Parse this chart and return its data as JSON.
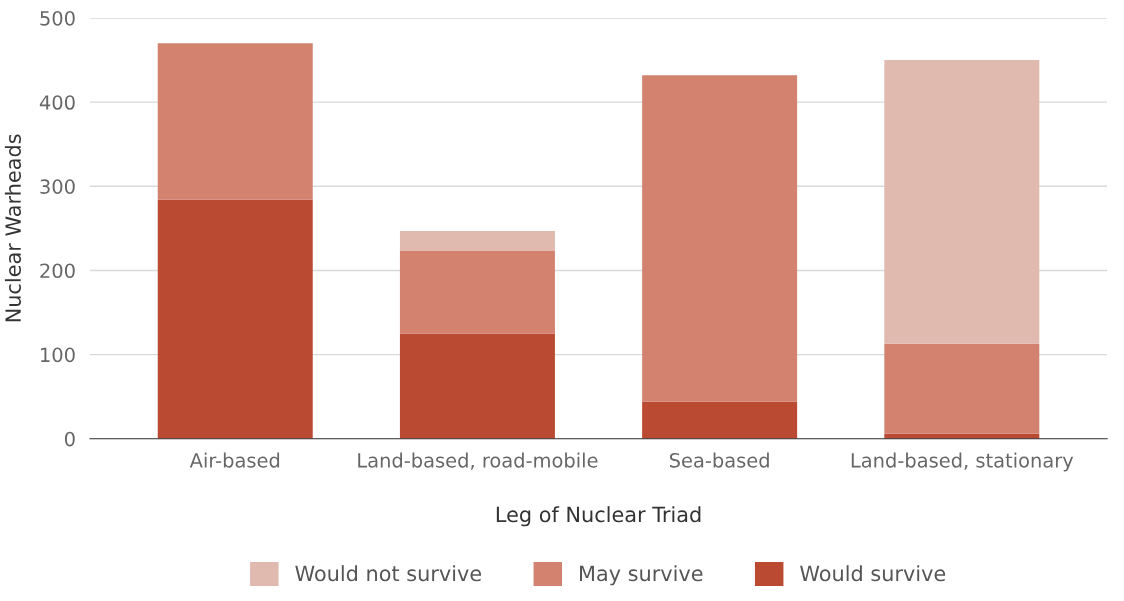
{
  "chart_data": {
    "type": "bar",
    "stacked": true,
    "categories": [
      "Air-based",
      "Land-based, road-mobile",
      "Sea-based",
      "Land-based, stationary"
    ],
    "series": [
      {
        "name": "Would survive",
        "color": "#bb4a32",
        "values": [
          284,
          125,
          44,
          6
        ]
      },
      {
        "name": "May survive",
        "color": "#d2826f",
        "values": [
          186,
          98,
          388,
          107
        ]
      },
      {
        "name": "Would not survive",
        "color": "#e0b9af",
        "values": [
          null,
          24,
          null,
          337
        ]
      }
    ],
    "xlabel": "Leg of Nuclear Triad",
    "ylabel": "Nuclear Warheads",
    "ylim": [
      0,
      500
    ],
    "yticks": [
      0,
      100,
      200,
      300,
      400,
      500
    ],
    "grid": "y",
    "legend": "bottom"
  }
}
